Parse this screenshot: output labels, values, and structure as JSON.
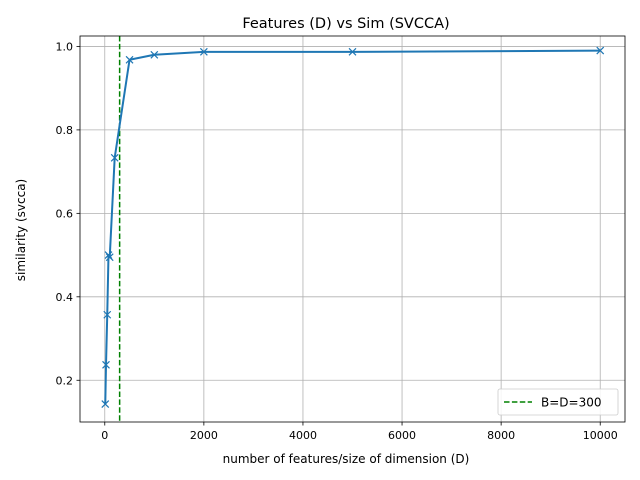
{
  "chart_data": {
    "type": "line",
    "title": "Features (D) vs Sim (SVCCA)",
    "xlabel": "number of features/size of dimension (D)",
    "ylabel": "similarity (svcca)",
    "xlim": [
      -500,
      10500
    ],
    "ylim": [
      0.1,
      1.025
    ],
    "xticks": [
      0,
      2000,
      4000,
      6000,
      8000,
      10000
    ],
    "yticks": [
      0.2,
      0.4,
      0.6,
      0.8,
      1.0
    ],
    "grid": true,
    "legend_position": "lower-right",
    "series": [
      {
        "name": "",
        "color": "#1f77b4",
        "marker": "x",
        "x": [
          10,
          25,
          50,
          75,
          100,
          200,
          500,
          1000,
          2000,
          5000,
          10000
        ],
        "y": [
          0.143,
          0.237,
          0.357,
          0.5,
          0.495,
          0.733,
          0.968,
          0.98,
          0.987,
          0.987,
          0.99
        ]
      }
    ],
    "reference_lines": [
      {
        "orientation": "vertical",
        "x": 300,
        "color": "#008000",
        "style": "dashed",
        "label": "B=D=300"
      }
    ]
  }
}
